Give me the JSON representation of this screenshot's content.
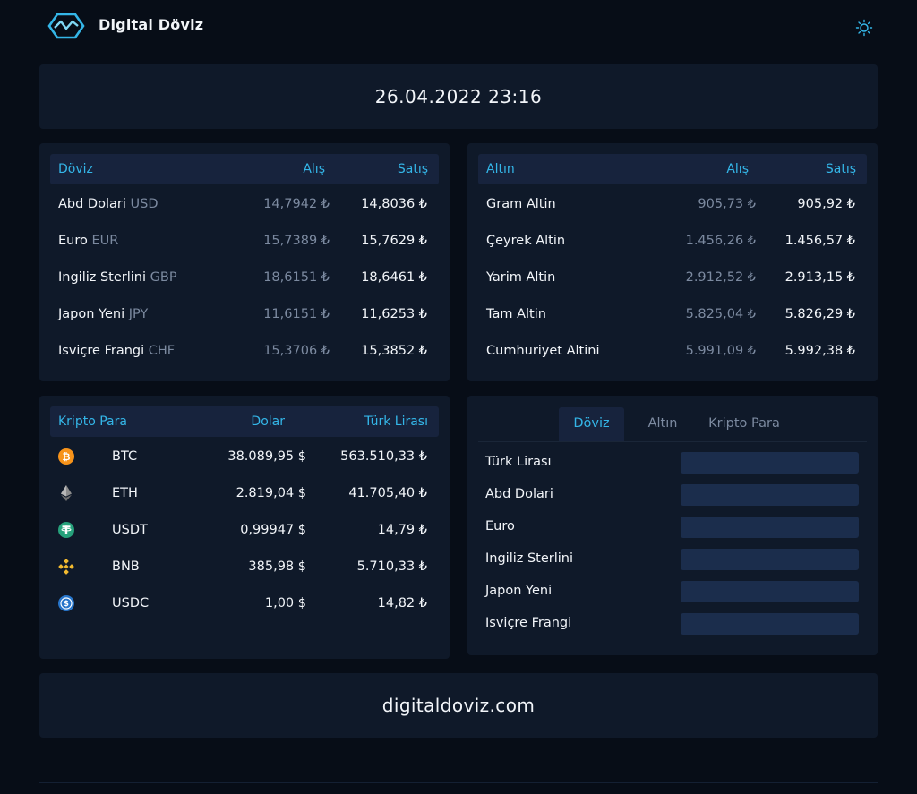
{
  "header": {
    "brand": "Digital Döviz",
    "logo_icon": "logo-icon",
    "theme_icon": "sun-icon"
  },
  "date": "26.04.2022 23:16",
  "currency": {
    "headers": {
      "name": "Döviz",
      "buy": "Alış",
      "sell": "Satış"
    },
    "rows": [
      {
        "name": "Abd Dolari",
        "code": "USD",
        "buy": "14,7942 ₺",
        "sell": "14,8036 ₺"
      },
      {
        "name": "Euro",
        "code": "EUR",
        "buy": "15,7389 ₺",
        "sell": "15,7629 ₺"
      },
      {
        "name": "Ingiliz Sterlini",
        "code": "GBP",
        "buy": "18,6151 ₺",
        "sell": "18,6461 ₺"
      },
      {
        "name": "Japon Yeni",
        "code": "JPY",
        "buy": "11,6151 ₺",
        "sell": "11,6253 ₺"
      },
      {
        "name": "Isviçre Frangi",
        "code": "CHF",
        "buy": "15,3706 ₺",
        "sell": "15,3852 ₺"
      }
    ]
  },
  "gold": {
    "headers": {
      "name": "Altın",
      "buy": "Alış",
      "sell": "Satış"
    },
    "rows": [
      {
        "name": "Gram Altin",
        "buy": "905,73 ₺",
        "sell": "905,92 ₺"
      },
      {
        "name": "Çeyrek Altin",
        "buy": "1.456,26 ₺",
        "sell": "1.456,57 ₺"
      },
      {
        "name": "Yarim Altin",
        "buy": "2.912,52 ₺",
        "sell": "2.913,15 ₺"
      },
      {
        "name": "Tam Altin",
        "buy": "5.825,04 ₺",
        "sell": "5.826,29 ₺"
      },
      {
        "name": "Cumhuriyet Altini",
        "buy": "5.991,09 ₺",
        "sell": "5.992,38 ₺"
      }
    ]
  },
  "crypto": {
    "headers": {
      "name": "Kripto Para",
      "usd": "Dolar",
      "try": "Türk Lirası"
    },
    "rows": [
      {
        "symbol": "BTC",
        "icon": "bitcoin-icon",
        "color": "#f7931a",
        "usd": "38.089,95 $",
        "try": "563.510,33 ₺"
      },
      {
        "symbol": "ETH",
        "icon": "ethereum-icon",
        "color": "#8c8c8c",
        "usd": "2.819,04 $",
        "try": "41.705,40 ₺"
      },
      {
        "symbol": "USDT",
        "icon": "tether-icon",
        "color": "#26a17b",
        "usd": "0,99947 $",
        "try": "14,79 ₺"
      },
      {
        "symbol": "BNB",
        "icon": "binance-icon",
        "color": "#f3ba2f",
        "usd": "385,98 $",
        "try": "5.710,33 ₺"
      },
      {
        "symbol": "USDC",
        "icon": "usdc-icon",
        "color": "#2775ca",
        "usd": "1,00 $",
        "try": "14,82 ₺"
      }
    ]
  },
  "converter": {
    "tabs": [
      "Döviz",
      "Altın",
      "Kripto Para"
    ],
    "active_tab": "Döviz",
    "fields": [
      "Türk Lirası",
      "Abd Dolari",
      "Euro",
      "Ingiliz Sterlini",
      "Japon Yeni",
      "Isviçre Frangi"
    ]
  },
  "footer": {
    "text": "digitaldoviz.com"
  },
  "colors": {
    "background": "#070d17",
    "card": "#0f1929",
    "header_row": "#17233d",
    "accent": "#34b6e8",
    "muted": "#7c8aa0",
    "input": "#1b2d4c"
  }
}
